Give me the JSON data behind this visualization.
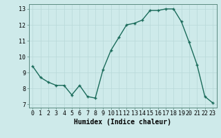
{
  "x": [
    0,
    1,
    2,
    3,
    4,
    5,
    6,
    7,
    8,
    9,
    10,
    11,
    12,
    13,
    14,
    15,
    16,
    17,
    18,
    19,
    20,
    21,
    22,
    23
  ],
  "y": [
    9.4,
    8.7,
    8.4,
    8.2,
    8.2,
    7.6,
    8.2,
    7.5,
    7.4,
    9.2,
    10.4,
    11.2,
    12.0,
    12.1,
    12.3,
    12.9,
    12.9,
    13.0,
    13.0,
    12.2,
    10.9,
    9.5,
    7.5,
    7.1
  ],
  "line_color": "#1a6b5a",
  "marker": "+",
  "marker_size": 3,
  "marker_linewidth": 1.0,
  "xlabel": "Humidex (Indice chaleur)",
  "xlim": [
    -0.5,
    23.5
  ],
  "ylim": [
    6.8,
    13.3
  ],
  "yticks": [
    7,
    8,
    9,
    10,
    11,
    12,
    13
  ],
  "xticks": [
    0,
    1,
    2,
    3,
    4,
    5,
    6,
    7,
    8,
    9,
    10,
    11,
    12,
    13,
    14,
    15,
    16,
    17,
    18,
    19,
    20,
    21,
    22,
    23
  ],
  "background_color": "#ceeaea",
  "grid_color": "#b8d8d8",
  "tick_fontsize": 6,
  "xlabel_fontsize": 7,
  "line_width": 1.0,
  "spine_color": "#5a8a80"
}
